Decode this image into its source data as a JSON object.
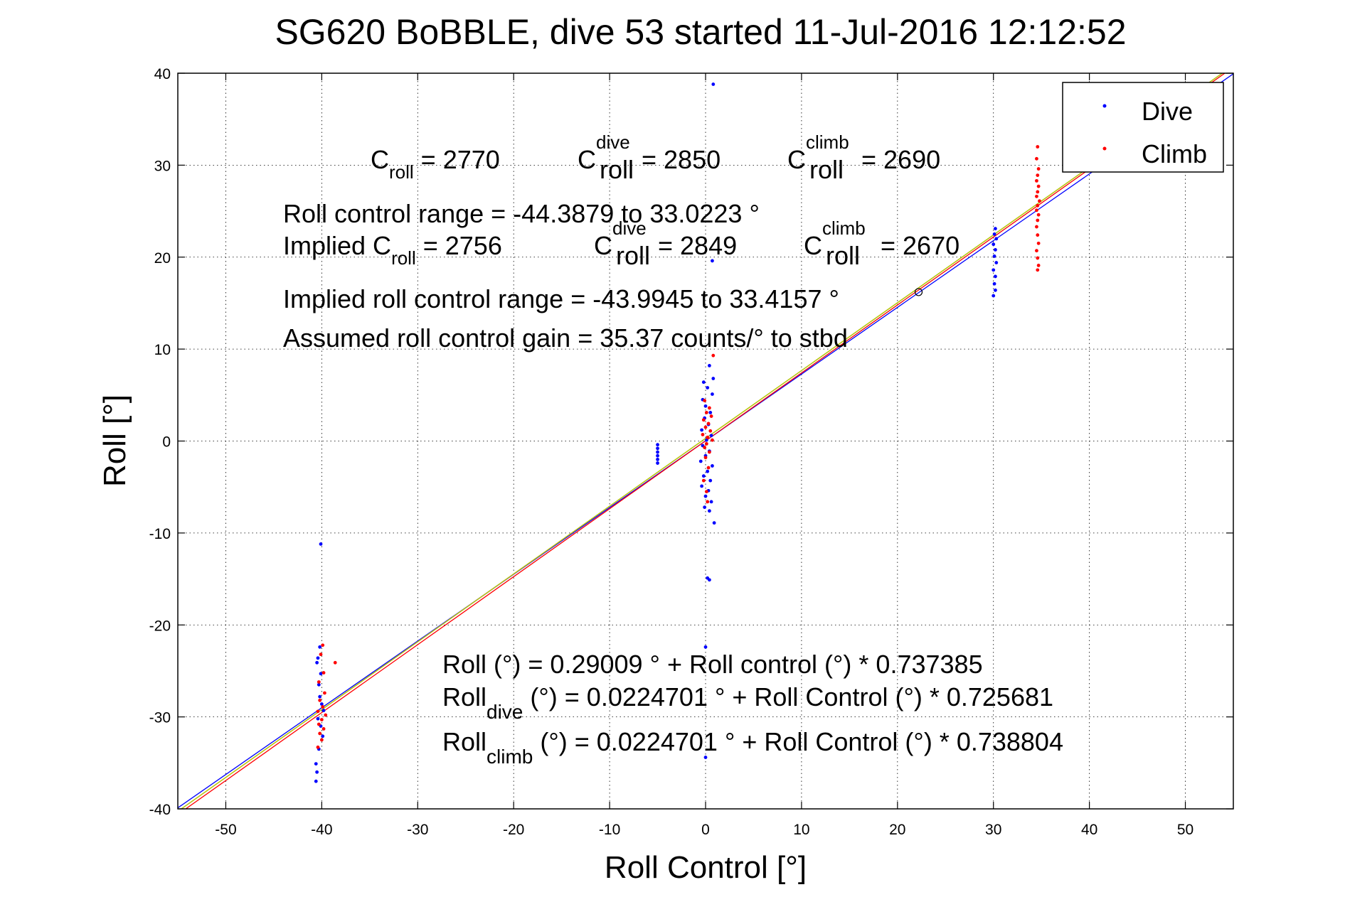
{
  "chart_data": {
    "type": "scatter",
    "title": "SG620 BoBBLE, dive 53 started 11-Jul-2016 12:12:52",
    "xlabel": "Roll Control [°]",
    "ylabel": "Roll [°]",
    "xlim": [
      -55,
      55
    ],
    "ylim": [
      -40,
      40
    ],
    "xticks": [
      -50,
      -40,
      -30,
      -20,
      -10,
      0,
      10,
      20,
      30,
      40,
      50
    ],
    "yticks": [
      -40,
      -30,
      -20,
      -10,
      0,
      10,
      20,
      30,
      40
    ],
    "xtick_labels": [
      "-50",
      "-40",
      "-30",
      "-20",
      "-10",
      "0",
      "10",
      "20",
      "30",
      "40",
      "50"
    ],
    "ytick_labels": [
      "-40",
      "-30",
      "-20",
      "-10",
      "0",
      "10",
      "20",
      "30",
      "40"
    ],
    "grid": true,
    "legend_position": "top-right",
    "colors": {
      "dive": "#0000ff",
      "climb": "#ff0000"
    },
    "series": [
      {
        "name": "Dive",
        "color": "#0000ff",
        "points": [
          [
            -40.1,
            -11.2
          ],
          [
            -40.2,
            -22.4
          ],
          [
            -40.4,
            -23.6
          ],
          [
            -40.5,
            -24.1
          ],
          [
            -40.1,
            -25.3
          ],
          [
            -40.3,
            -26.5
          ],
          [
            -40.2,
            -27.8
          ],
          [
            -40.0,
            -28.6
          ],
          [
            -39.8,
            -29.3
          ],
          [
            -40.4,
            -30.2
          ],
          [
            -40.1,
            -31.0
          ],
          [
            -39.9,
            -32.1
          ],
          [
            -40.3,
            -33.5
          ],
          [
            -40.6,
            -35.1
          ],
          [
            -40.5,
            -36.0
          ],
          [
            -40.6,
            -37.0
          ],
          [
            -5.0,
            -0.4
          ],
          [
            -5.0,
            -0.8
          ],
          [
            -5.0,
            -1.2
          ],
          [
            -5.0,
            -1.6
          ],
          [
            -5.0,
            -2.0
          ],
          [
            -5.0,
            -2.4
          ],
          [
            0.8,
            38.8
          ],
          [
            0.7,
            19.6
          ],
          [
            0.4,
            8.2
          ],
          [
            0.8,
            6.8
          ],
          [
            -0.2,
            6.4
          ],
          [
            0.2,
            5.8
          ],
          [
            0.7,
            5.1
          ],
          [
            -0.3,
            4.5
          ],
          [
            0.0,
            3.8
          ],
          [
            0.5,
            3.1
          ],
          [
            -0.1,
            2.5
          ],
          [
            0.3,
            1.8
          ],
          [
            -0.4,
            1.2
          ],
          [
            0.6,
            0.6
          ],
          [
            0.1,
            0.1
          ],
          [
            -0.3,
            -0.5
          ],
          [
            0.4,
            -1.1
          ],
          [
            0.0,
            -1.6
          ],
          [
            -0.5,
            -2.2
          ],
          [
            0.7,
            -2.7
          ],
          [
            0.2,
            -3.3
          ],
          [
            -0.2,
            -3.8
          ],
          [
            0.5,
            -4.3
          ],
          [
            -0.4,
            -4.9
          ],
          [
            0.3,
            -5.4
          ],
          [
            0.0,
            -6.0
          ],
          [
            0.6,
            -6.6
          ],
          [
            -0.1,
            -7.2
          ],
          [
            0.4,
            -7.6
          ],
          [
            0.9,
            -8.9
          ],
          [
            0.2,
            -14.9
          ],
          [
            0.4,
            -15.1
          ],
          [
            0.0,
            -22.4
          ],
          [
            0.0,
            -34.4
          ],
          [
            30.2,
            23.1
          ],
          [
            30.1,
            22.5
          ],
          [
            30.3,
            22.0
          ],
          [
            30.0,
            21.4
          ],
          [
            30.2,
            20.8
          ],
          [
            30.1,
            20.1
          ],
          [
            30.3,
            19.4
          ],
          [
            30.0,
            18.6
          ],
          [
            30.2,
            17.9
          ],
          [
            30.1,
            17.1
          ],
          [
            30.2,
            16.4
          ],
          [
            30.0,
            15.8
          ]
        ]
      },
      {
        "name": "Climb",
        "color": "#ff0000",
        "points": [
          [
            -39.9,
            -22.2
          ],
          [
            -40.1,
            -23.2
          ],
          [
            -38.6,
            -24.1
          ],
          [
            -39.8,
            -25.2
          ],
          [
            -40.3,
            -26.2
          ],
          [
            -39.7,
            -27.4
          ],
          [
            -40.2,
            -28.2
          ],
          [
            -39.9,
            -28.9
          ],
          [
            -40.4,
            -29.4
          ],
          [
            -39.6,
            -29.8
          ],
          [
            -40.0,
            -30.3
          ],
          [
            -40.3,
            -30.8
          ],
          [
            -39.8,
            -31.3
          ],
          [
            -40.2,
            -31.8
          ],
          [
            -40.0,
            -32.5
          ],
          [
            -40.4,
            -33.3
          ],
          [
            0.8,
            9.3
          ],
          [
            -0.1,
            4.4
          ],
          [
            0.4,
            3.6
          ],
          [
            0.1,
            3.1
          ],
          [
            0.6,
            2.7
          ],
          [
            -0.2,
            2.3
          ],
          [
            0.3,
            1.9
          ],
          [
            0.0,
            1.5
          ],
          [
            0.5,
            1.1
          ],
          [
            -0.3,
            0.7
          ],
          [
            0.2,
            0.4
          ],
          [
            0.7,
            0.1
          ],
          [
            0.1,
            -0.3
          ],
          [
            -0.1,
            -0.7
          ],
          [
            0.4,
            -1.2
          ],
          [
            0.0,
            -1.8
          ],
          [
            0.3,
            -2.9
          ],
          [
            -0.2,
            -4.3
          ],
          [
            0.1,
            -5.5
          ],
          [
            0.2,
            -6.6
          ],
          [
            34.6,
            32.0
          ],
          [
            34.5,
            30.7
          ],
          [
            34.7,
            29.6
          ],
          [
            34.6,
            28.9
          ],
          [
            34.5,
            28.3
          ],
          [
            34.7,
            27.7
          ],
          [
            34.6,
            27.1
          ],
          [
            34.5,
            26.6
          ],
          [
            34.8,
            26.1
          ],
          [
            34.6,
            25.6
          ],
          [
            34.5,
            25.1
          ],
          [
            34.7,
            24.6
          ],
          [
            34.6,
            24.0
          ],
          [
            34.5,
            23.3
          ],
          [
            34.6,
            22.4
          ],
          [
            34.7,
            21.5
          ],
          [
            34.5,
            20.7
          ],
          [
            34.6,
            19.9
          ],
          [
            34.7,
            19.1
          ],
          [
            34.6,
            18.6
          ]
        ]
      }
    ],
    "fit_lines": [
      {
        "intercept": 0.29009,
        "slope": 0.737385,
        "color": "#008000"
      },
      {
        "intercept": 0.0224701,
        "slope": 0.725681,
        "color": "#0000ff"
      },
      {
        "intercept": 0.0224701,
        "slope": 0.738804,
        "color": "#ff0000"
      },
      {
        "intercept": 0.29009,
        "slope": 0.737385,
        "color": "#c8c800"
      }
    ],
    "markers": [
      {
        "x": 22.2,
        "y": 16.2,
        "shape": "circle"
      }
    ],
    "annotations": {
      "c_line": {
        "c_base": "C",
        "c_sub": "roll",
        "c_val": " = 2770",
        "dive_base": "C",
        "dive_sup": "dive",
        "dive_sub": "roll",
        "dive_val": " = 2850",
        "climb_base": "C",
        "climb_sup": "climb",
        "climb_sub": "roll",
        "climb_val": " = 2690"
      },
      "range_line": "Roll control range = -44.3879 to 33.0223 °",
      "implied_line": {
        "lead": "Implied C",
        "c_sub": "roll",
        "c_val": " = 2756",
        "dive_base": "C",
        "dive_sup": "dive",
        "dive_sub": "roll",
        "dive_val": " = 2849",
        "climb_base": "C",
        "climb_sup": "climb",
        "climb_sub": "roll",
        "climb_val": " = 2670"
      },
      "implied_range_line": "Implied roll control range = -43.9945 to 33.4157 °",
      "gain_line": "Assumed roll control gain = 35.37 counts/° to stbd",
      "fit_all": "Roll (°) = 0.29009 ° + Roll control (°) * 0.737385",
      "fit_dive": {
        "lead": "Roll",
        "sub": "dive",
        "rest": " (°) = 0.0224701 ° + Roll Control (°) * 0.725681"
      },
      "fit_climb": {
        "lead": "Roll",
        "sub": "climb",
        "rest": " (°) = 0.0224701 ° + Roll Control (°) * 0.738804"
      }
    }
  }
}
